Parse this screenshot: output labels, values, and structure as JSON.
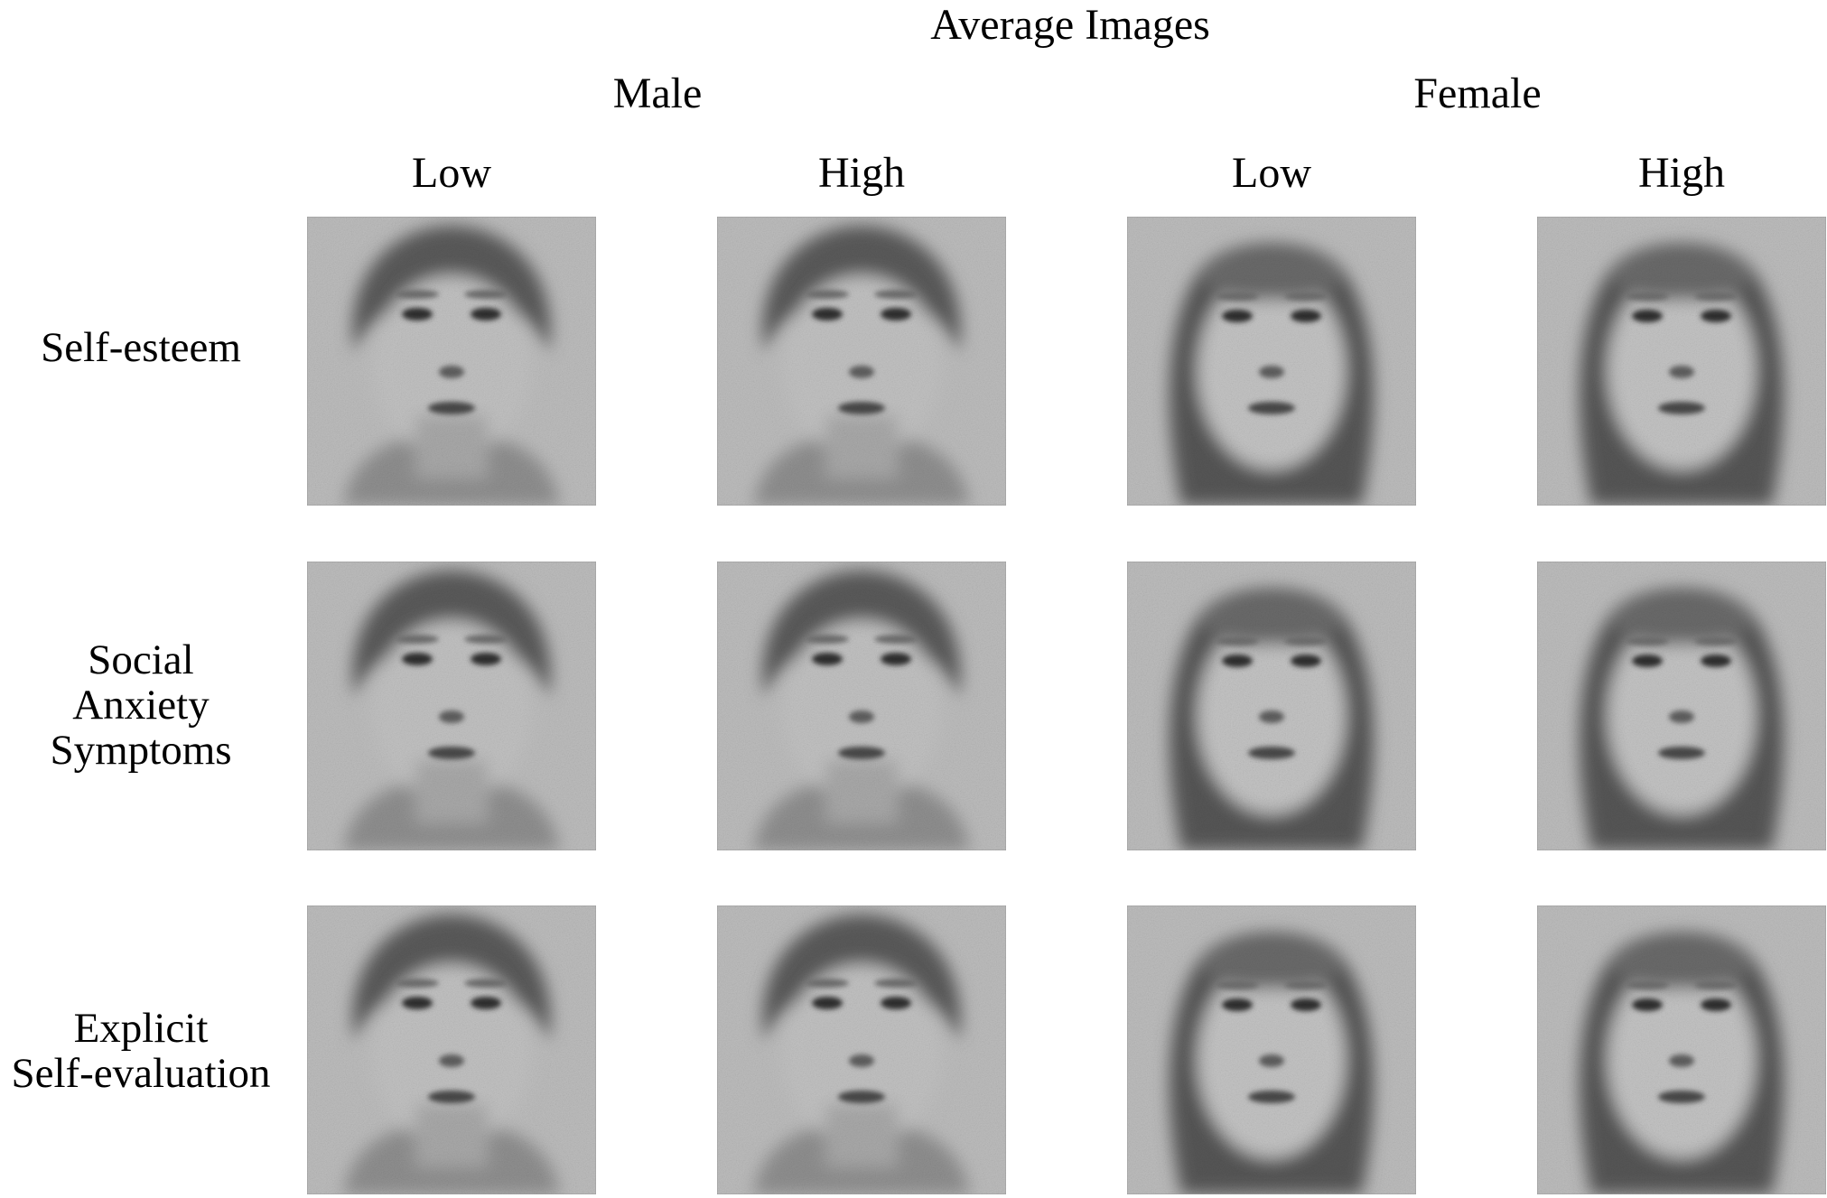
{
  "title": "Average Images",
  "groups": [
    {
      "label": "Male",
      "levels": [
        "Low",
        "High"
      ]
    },
    {
      "label": "Female",
      "levels": [
        "Low",
        "High"
      ]
    }
  ],
  "rows": [
    {
      "label_lines": [
        "Self-esteem"
      ]
    },
    {
      "label_lines": [
        "Social",
        "Anxiety",
        "Symptoms"
      ]
    },
    {
      "label_lines": [
        "Explicit",
        "Self-evaluation"
      ]
    }
  ],
  "image_kind": "grayscale average face images (reverse-correlation classification images)",
  "cell_subjects": [
    "male",
    "male",
    "female",
    "female"
  ]
}
